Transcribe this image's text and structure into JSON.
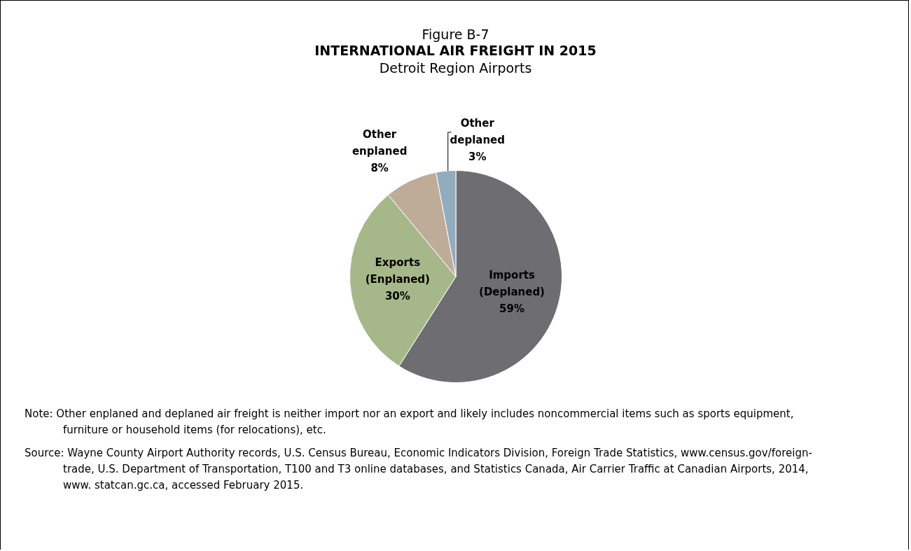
{
  "chart_data": {
    "type": "pie",
    "title": "INTERNATIONAL AIR FREIGHT IN 2015",
    "subtitle": "Detroit Region Airports",
    "categories": [
      "Imports (Deplaned)",
      "Exports (Enplaned)",
      "Other enplaned",
      "Other deplaned"
    ],
    "values": [
      59,
      30,
      8,
      3
    ],
    "value_labels": [
      "59%",
      "30%",
      "8%",
      "3%"
    ],
    "colors": [
      "#6e6d72",
      "#a6b88a",
      "#bfac98",
      "#93acbd"
    ],
    "annotations": [
      "Figure B-7",
      "Note: Other enplaned and deplaned air freight is neither import nor an export and likely includes noncommercial items such as sports equipment, furniture or household items (for relocations), etc.",
      "Source: Wayne County Airport Authority records, U.S. Census Bureau, Economic Indicators Division, Foreign Trade Statistics, www.census.gov/foreign-trade, U.S. Department of Transportation, T100 and T3 online databases, and Statistics Canada, Air Carrier Traffic at Canadian Airports, 2014, www. statcan.gc.ca, accessed February 2015."
    ]
  }
}
